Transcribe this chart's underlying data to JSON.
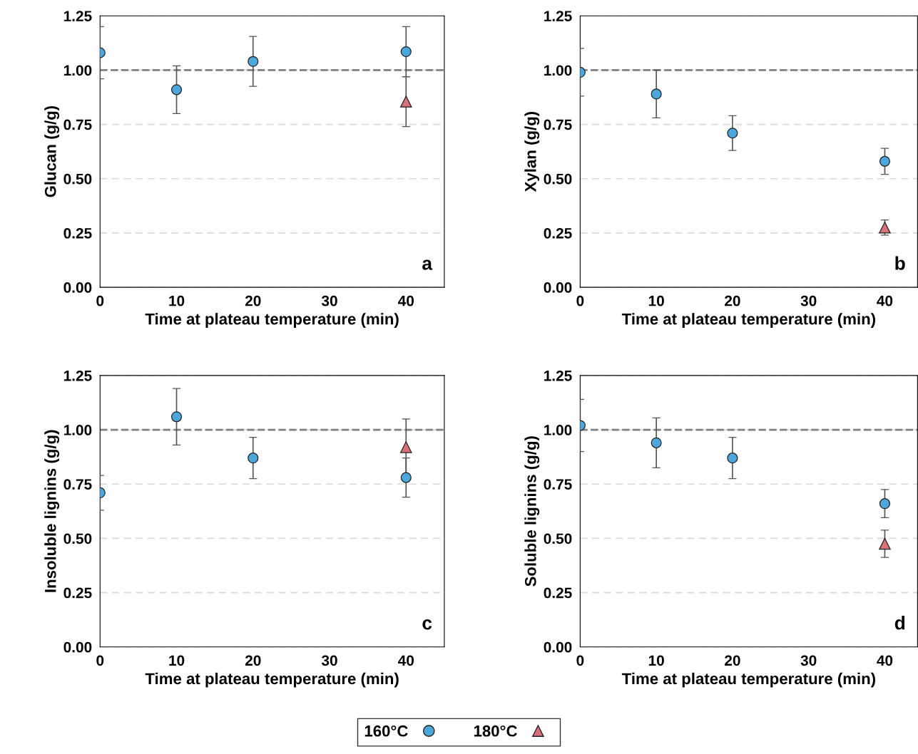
{
  "chart_data": [
    {
      "type": "scatter",
      "xlabel": "Time at plateau temperature (min)",
      "ylabel": "Glucan (g/g)",
      "xlim": [
        0,
        45
      ],
      "xticks": [
        0,
        10,
        20,
        30,
        40
      ],
      "ylim": [
        0,
        1.25
      ],
      "yticks": [
        {
          "value": 0,
          "label": "0.00"
        },
        {
          "value": 0.25,
          "label": "0.25"
        },
        {
          "value": 0.5,
          "label": "0.50"
        },
        {
          "value": 0.75,
          "label": "0.75"
        },
        {
          "value": 1,
          "label": "1.00"
        },
        {
          "value": 1.25,
          "label": "1.25"
        }
      ],
      "grid": "y",
      "legend": "bottom",
      "annotations": [
        "a"
      ],
      "ref_lines": [
        {
          "axis": "y",
          "value": 1,
          "color": "#808080",
          "line_style": "dashed"
        }
      ],
      "series": [
        {
          "name": "160°C",
          "color": "#4da6dc",
          "marker": "circle",
          "x": [
            0,
            10,
            20,
            40
          ],
          "values": [
            1.08,
            0.91,
            1.04,
            1.085
          ],
          "errors": [
            0.12,
            0.11,
            0.115,
            0.115
          ]
        },
        {
          "name": "180°C",
          "color": "#d9707a",
          "marker": "triangle",
          "x": [
            40
          ],
          "values": [
            0.855
          ],
          "errors": [
            0.115
          ]
        }
      ]
    },
    {
      "type": "scatter",
      "xlabel": "Time at plateau temperature (min)",
      "ylabel": "Xylan (g/g)",
      "xlim": [
        0,
        44.3
      ],
      "xticks": [
        0,
        10,
        20,
        30,
        40
      ],
      "ylim": [
        0,
        1.25
      ],
      "yticks": [
        {
          "value": 0,
          "label": "0.00"
        },
        {
          "value": 0.25,
          "label": "0.25"
        },
        {
          "value": 0.5,
          "label": "0.50"
        },
        {
          "value": 0.75,
          "label": "0.75"
        },
        {
          "value": 1,
          "label": "1.00"
        },
        {
          "value": 1.25,
          "label": "1.25"
        }
      ],
      "grid": "y",
      "legend": false,
      "annotations": [
        "b"
      ],
      "ref_lines": [
        {
          "axis": "y",
          "value": 1,
          "color": "#808080",
          "line_style": "dashed"
        }
      ],
      "series": [
        {
          "color": "#4da6dc",
          "marker": "circle",
          "x": [
            0,
            10,
            20,
            40
          ],
          "values": [
            0.99,
            0.89,
            0.71,
            0.58
          ],
          "errors": [
            0.11,
            0.11,
            0.08,
            0.06
          ]
        },
        {
          "color": "#d9707a",
          "marker": "triangle",
          "x": [
            40
          ],
          "values": [
            0.275
          ],
          "errors": [
            0.035
          ]
        }
      ]
    },
    {
      "type": "scatter",
      "xlabel": "Time at plateau temperature (min)",
      "ylabel": "Insoluble lignins (g/g)",
      "xlim": [
        0,
        45
      ],
      "xticks": [
        0,
        10,
        20,
        30,
        40
      ],
      "ylim": [
        0,
        1.25
      ],
      "yticks": [
        {
          "value": 0,
          "label": "0.00"
        },
        {
          "value": 0.25,
          "label": "0.25"
        },
        {
          "value": 0.5,
          "label": "0.50"
        },
        {
          "value": 0.75,
          "label": "0.75"
        },
        {
          "value": 1,
          "label": "1.00"
        },
        {
          "value": 1.25,
          "label": "1.25"
        }
      ],
      "grid": "y",
      "legend": false,
      "annotations": [
        "c"
      ],
      "ref_lines": [
        {
          "axis": "y",
          "value": 1,
          "color": "#808080",
          "line_style": "dashed"
        }
      ],
      "series": [
        {
          "color": "#4da6dc",
          "marker": "circle",
          "x": [
            0,
            10,
            20,
            40
          ],
          "values": [
            0.71,
            1.06,
            0.87,
            0.78
          ],
          "errors": [
            0.08,
            0.13,
            0.095,
            0.09
          ]
        },
        {
          "color": "#d9707a",
          "marker": "triangle",
          "x": [
            40
          ],
          "values": [
            0.92
          ],
          "errors": [
            0.13
          ]
        }
      ]
    },
    {
      "type": "scatter",
      "xlabel": "Time at plateau temperature (min)",
      "ylabel": "Soluble lignins (g/g)",
      "xlim": [
        0,
        44.3
      ],
      "xticks": [
        0,
        10,
        20,
        30,
        40
      ],
      "ylim": [
        0,
        1.25
      ],
      "yticks": [
        {
          "value": 0,
          "label": "0.00"
        },
        {
          "value": 0.25,
          "label": "0.25"
        },
        {
          "value": 0.5,
          "label": "0.50"
        },
        {
          "value": 0.75,
          "label": "0.75"
        },
        {
          "value": 1,
          "label": "1.00"
        },
        {
          "value": 1.25,
          "label": "1.25"
        }
      ],
      "grid": "y",
      "legend": false,
      "annotations": [
        "d"
      ],
      "ref_lines": [
        {
          "axis": "y",
          "value": 1,
          "color": "#808080",
          "line_style": "dashed"
        }
      ],
      "series": [
        {
          "color": "#4da6dc",
          "marker": "circle",
          "x": [
            0,
            10,
            20,
            40
          ],
          "values": [
            1.02,
            0.94,
            0.87,
            0.66
          ],
          "errors": [
            0.12,
            0.115,
            0.095,
            0.065
          ]
        },
        {
          "color": "#d9707a",
          "marker": "triangle",
          "x": [
            40
          ],
          "values": [
            0.475
          ],
          "errors": [
            0.063
          ]
        }
      ]
    }
  ]
}
